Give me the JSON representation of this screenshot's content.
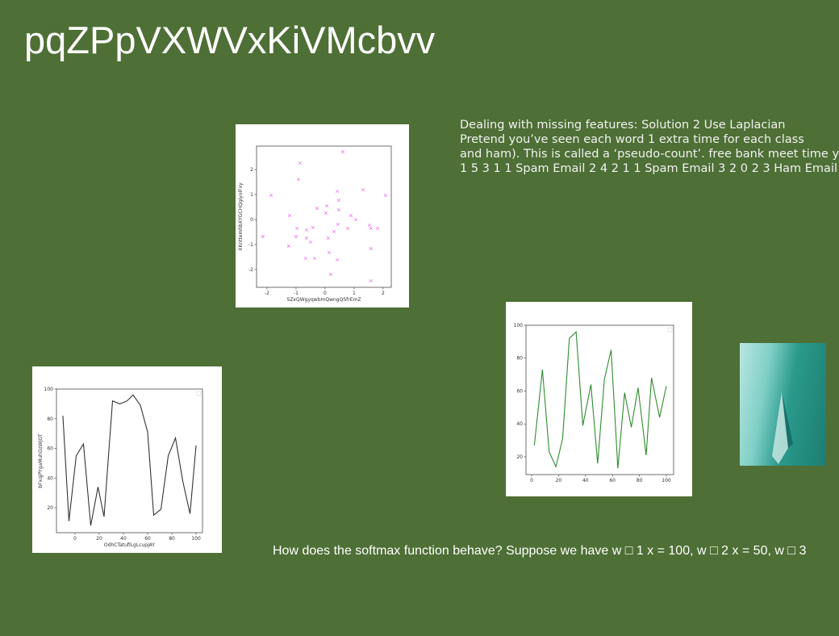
{
  "title": "pqZPpVXWVxKiVMcbvv",
  "text_block": [
    "Dealing with missing features: Solution 2 Use Laplacian",
    "Pretend you’ve seen each word 1 extra time for each class",
    "and ham). This is called a ‘pseudo-count’. free bank meet time y",
    "1 5 3 1 1 Spam Email 2 4 2 1 1 Spam Email 3 2 0 2 3 Ham Email"
  ],
  "bottom_text": "How does the softmax function behave? Suppose we have w □ 1 x = 100, w □ 2 x = 50, w □ 3",
  "chart_data": [
    {
      "type": "scatter",
      "xlabel": "SZxQWgyqwbmQwngQSfrEmZ",
      "ylabel": "XKnttemhbXYGCHQgiyolFxy",
      "color": "#ee82ee",
      "x": [
        -0.86,
        0.61,
        -1.86,
        -0.92,
        0.42,
        1.31,
        2.08,
        0.47,
        -1.22,
        -0.28,
        0.06,
        0.03,
        0.47,
        0.89,
        1.06,
        -2.14,
        -0.97,
        -0.64,
        -0.42,
        -1.0,
        -0.64,
        -0.5,
        0.11,
        0.31,
        0.44,
        0.78,
        1.53,
        1.58,
        1.81,
        -1.25,
        -0.67,
        -0.36,
        0.14,
        0.42,
        1.58,
        0.19,
        1.58
      ],
      "y": [
        2.26,
        2.71,
        0.97,
        1.61,
        1.13,
        1.19,
        0.97,
        0.77,
        0.16,
        0.45,
        0.55,
        0.26,
        0.39,
        0.16,
        0,
        -0.68,
        -0.35,
        -0.42,
        -0.32,
        -0.68,
        -0.74,
        -0.9,
        -0.74,
        -0.48,
        -0.19,
        -0.35,
        -0.23,
        -0.35,
        -0.35,
        -1.06,
        -1.55,
        -1.55,
        -1.32,
        -1.61,
        -1.16,
        -2.19,
        -2.45
      ],
      "xlim": [
        -2.36,
        2.28
      ],
      "ylim": [
        -2.71,
        2.94
      ],
      "xticks": [
        -2,
        -1,
        0,
        1,
        2
      ],
      "yticks": [
        -2,
        -1,
        0,
        1,
        2
      ]
    },
    {
      "type": "line",
      "xlabel": "OdhCTatufiLgLcupJAY",
      "ylabel": "bFxqjPYgaMuhDzWjOT",
      "color": "#333333",
      "x": [
        -10,
        -5,
        1,
        7,
        13,
        19,
        24,
        31,
        37,
        43,
        48,
        54,
        60,
        65,
        71,
        77,
        83,
        89,
        95,
        100
      ],
      "values": [
        82,
        11,
        55,
        63,
        8,
        34,
        14,
        92,
        90,
        92,
        96,
        89,
        71,
        15,
        19,
        55,
        67,
        38,
        16,
        62
      ],
      "xlim": [
        -15.3,
        105.3
      ],
      "ylim": [
        3.2,
        100
      ],
      "xticks": [
        0,
        20,
        40,
        60,
        80,
        100
      ],
      "yticks": [
        20,
        40,
        60,
        80,
        100
      ]
    },
    {
      "type": "line",
      "color": "#2e8b2e",
      "x": [
        2,
        8,
        13,
        18,
        23,
        28,
        33,
        38,
        44,
        49,
        54,
        59,
        64,
        69,
        74,
        79,
        85,
        89,
        95,
        100
      ],
      "values": [
        27,
        73,
        23,
        14,
        31,
        92,
        96,
        39,
        64,
        16,
        67,
        85,
        13,
        59,
        38,
        62,
        21,
        68,
        44,
        63
      ],
      "xlim": [
        -4.2,
        105.4
      ],
      "ylim": [
        9.2,
        100
      ],
      "xticks": [
        0,
        20,
        40,
        60,
        80,
        100
      ],
      "yticks": [
        20,
        40,
        60,
        80,
        100
      ]
    }
  ]
}
